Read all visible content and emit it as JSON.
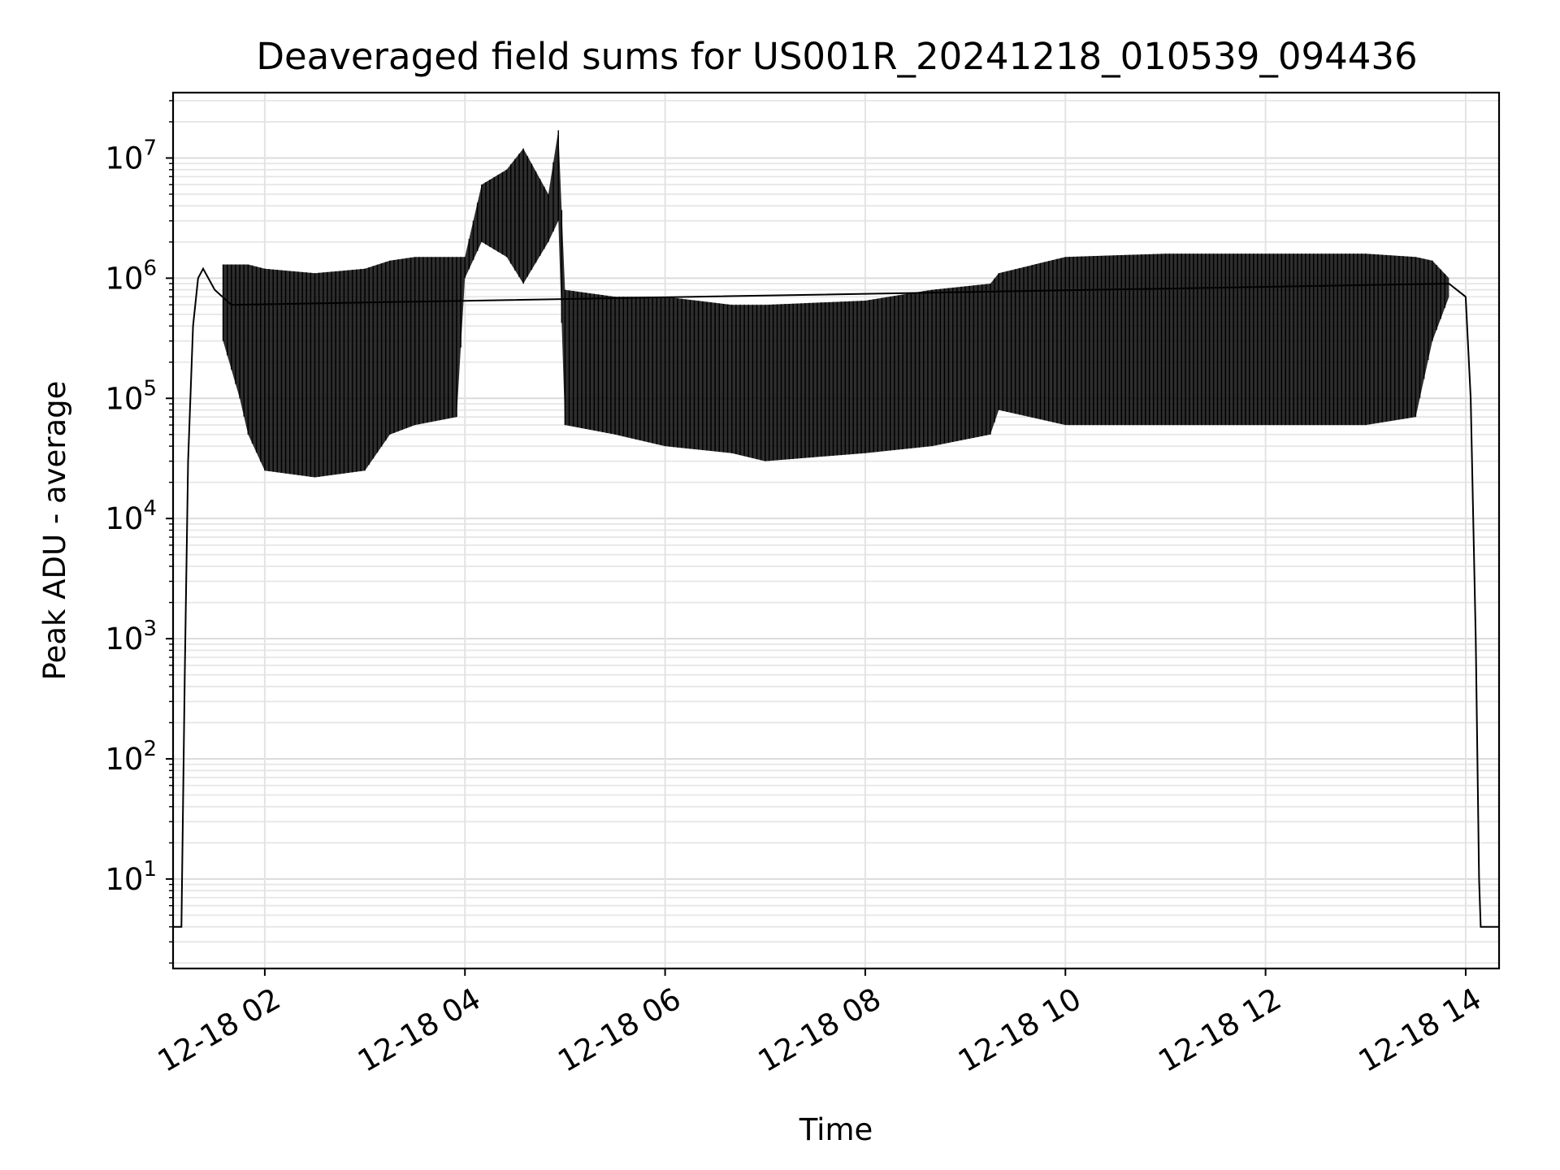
{
  "chart_data": {
    "type": "line",
    "title": "Deaveraged field sums for US001R_20241218_010539_094436",
    "xlabel": "Time",
    "ylabel": "Peak ADU - average",
    "yscale": "log",
    "grid": true,
    "xlim": [
      "12-18 01:05",
      "12-18 14:20"
    ],
    "ylim": [
      1.8,
      35000000
    ],
    "x_ticks": [
      "12-18 02",
      "12-18 04",
      "12-18 06",
      "12-18 08",
      "12-18 10",
      "12-18 12",
      "12-18 14"
    ],
    "y_ticks": [
      {
        "value": 10,
        "base": "10",
        "exp": "1"
      },
      {
        "value": 100,
        "base": "10",
        "exp": "2"
      },
      {
        "value": 1000,
        "base": "10",
        "exp": "3"
      },
      {
        "value": 10000,
        "base": "10",
        "exp": "4"
      },
      {
        "value": 100000,
        "base": "10",
        "exp": "5"
      },
      {
        "value": 1000000,
        "base": "10",
        "exp": "6"
      },
      {
        "value": 10000000,
        "base": "10",
        "exp": "7"
      }
    ],
    "series": [
      {
        "color": "#000000",
        "line_points": [
          {
            "x": "12-18 01:05",
            "y": 4
          },
          {
            "x": "12-18 01:10",
            "y": 4
          },
          {
            "x": "12-18 01:12",
            "y": 500
          },
          {
            "x": "12-18 01:14",
            "y": 30000
          },
          {
            "x": "12-18 01:17",
            "y": 400000
          },
          {
            "x": "12-18 01:20",
            "y": 1000000
          },
          {
            "x": "12-18 01:23",
            "y": 1200000
          },
          {
            "x": "12-18 01:30",
            "y": 800000
          },
          {
            "x": "12-18 01:40",
            "y": 600000
          },
          {
            "x": "12-18 13:50",
            "y": 900000
          },
          {
            "x": "12-18 14:00",
            "y": 700000
          },
          {
            "x": "12-18 14:03",
            "y": 100000
          },
          {
            "x": "12-18 14:06",
            "y": 1000
          },
          {
            "x": "12-18 14:08",
            "y": 10
          },
          {
            "x": "12-18 14:09",
            "y": 4
          },
          {
            "x": "12-18 14:20",
            "y": 4
          }
        ],
        "envelope": [
          {
            "x": "12-18 01:35",
            "low": 300000,
            "high": 1300000
          },
          {
            "x": "12-18 01:45",
            "low": 100000,
            "high": 1300000
          },
          {
            "x": "12-18 01:50",
            "low": 50000,
            "high": 1300000
          },
          {
            "x": "12-18 02:00",
            "low": 25000,
            "high": 1200000
          },
          {
            "x": "12-18 02:30",
            "low": 22000,
            "high": 1100000
          },
          {
            "x": "12-18 03:00",
            "low": 25000,
            "high": 1200000
          },
          {
            "x": "12-18 03:15",
            "low": 50000,
            "high": 1400000
          },
          {
            "x": "12-18 03:30",
            "low": 60000,
            "high": 1500000
          },
          {
            "x": "12-18 03:55",
            "low": 70000,
            "high": 1500000
          },
          {
            "x": "12-18 04:00",
            "low": 1000000,
            "high": 1500000
          },
          {
            "x": "12-18 04:10",
            "low": 2000000,
            "high": 6000000
          },
          {
            "x": "12-18 04:25",
            "low": 1500000,
            "high": 8000000
          },
          {
            "x": "12-18 04:35",
            "low": 900000,
            "high": 12000000
          },
          {
            "x": "12-18 04:50",
            "low": 2000000,
            "high": 5000000
          },
          {
            "x": "12-18 04:56",
            "low": 3000000,
            "high": 17000000
          },
          {
            "x": "12-18 05:00",
            "low": 60000,
            "high": 800000
          },
          {
            "x": "12-18 05:30",
            "low": 50000,
            "high": 700000
          },
          {
            "x": "12-18 06:00",
            "low": 40000,
            "high": 700000
          },
          {
            "x": "12-18 06:40",
            "low": 35000,
            "high": 600000
          },
          {
            "x": "12-18 07:00",
            "low": 30000,
            "high": 600000
          },
          {
            "x": "12-18 08:00",
            "low": 35000,
            "high": 650000
          },
          {
            "x": "12-18 08:40",
            "low": 40000,
            "high": 800000
          },
          {
            "x": "12-18 09:15",
            "low": 50000,
            "high": 900000
          },
          {
            "x": "12-18 09:20",
            "low": 80000,
            "high": 1100000
          },
          {
            "x": "12-18 10:00",
            "low": 60000,
            "high": 1500000
          },
          {
            "x": "12-18 11:00",
            "low": 60000,
            "high": 1600000
          },
          {
            "x": "12-18 12:00",
            "low": 60000,
            "high": 1600000
          },
          {
            "x": "12-18 13:00",
            "low": 60000,
            "high": 1600000
          },
          {
            "x": "12-18 13:30",
            "low": 70000,
            "high": 1500000
          },
          {
            "x": "12-18 13:40",
            "low": 300000,
            "high": 1400000
          },
          {
            "x": "12-18 13:50",
            "low": 700000,
            "high": 1000000
          }
        ]
      }
    ]
  }
}
